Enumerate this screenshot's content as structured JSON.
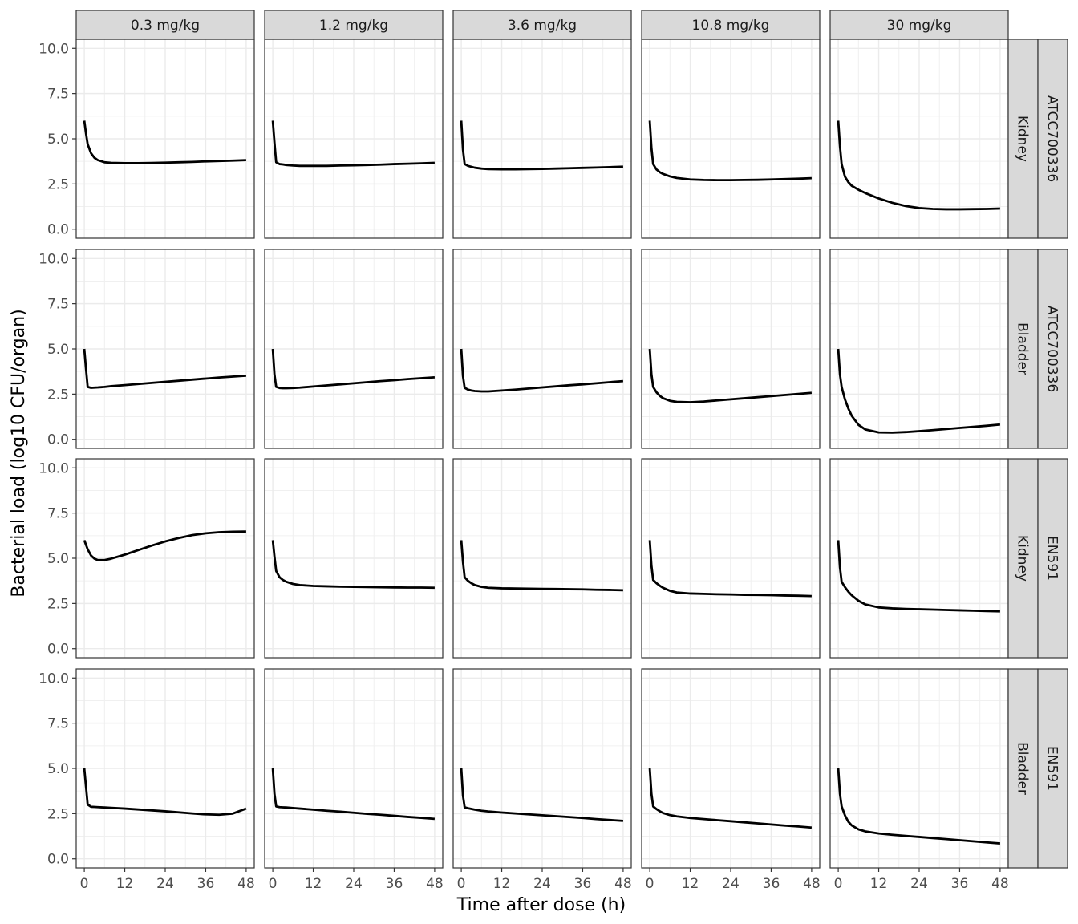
{
  "chart_data": {
    "type": "line",
    "layout": "facet-grid",
    "xlabel": "Time after dose (h)",
    "ylabel": "Bacterial load (log10 CFU/organ)",
    "xlim": [
      0,
      48
    ],
    "ylim": [
      0,
      10
    ],
    "x_ticks": [
      0,
      12,
      24,
      36,
      48
    ],
    "x_tick_labels": [
      "0",
      "12",
      "24",
      "36",
      "48"
    ],
    "y_ticks": [
      0,
      2.5,
      5,
      7.5,
      10
    ],
    "y_tick_labels": [
      "0.0",
      "2.5",
      "5.0",
      "7.5",
      "10.0"
    ],
    "grid": true,
    "line_color": "#000000",
    "column_labels": [
      "0.3 mg/kg",
      "1.2 mg/kg",
      "3.6 mg/kg",
      "10.8 mg/kg",
      "30 mg/kg"
    ],
    "row_labels": [
      {
        "organ": "Kidney",
        "strain": "ATCC700336"
      },
      {
        "organ": "Bladder",
        "strain": "ATCC700336"
      },
      {
        "organ": "Kidney",
        "strain": "EN591"
      },
      {
        "organ": "Bladder",
        "strain": "EN591"
      }
    ],
    "x": [
      0,
      0.5,
      1,
      2,
      3,
      4,
      6,
      8,
      12,
      16,
      20,
      24,
      28,
      32,
      36,
      40,
      44,
      48
    ],
    "panels": [
      [
        {
          "y": [
            6.0,
            5.3,
            4.7,
            4.2,
            3.95,
            3.82,
            3.7,
            3.67,
            3.65,
            3.65,
            3.66,
            3.68,
            3.7,
            3.72,
            3.75,
            3.77,
            3.79,
            3.82
          ]
        },
        {
          "y": [
            6.0,
            4.8,
            3.7,
            3.6,
            3.58,
            3.55,
            3.52,
            3.5,
            3.5,
            3.5,
            3.52,
            3.53,
            3.55,
            3.57,
            3.6,
            3.62,
            3.64,
            3.67
          ]
        },
        {
          "y": [
            6.0,
            4.4,
            3.6,
            3.5,
            3.45,
            3.4,
            3.35,
            3.32,
            3.31,
            3.31,
            3.32,
            3.33,
            3.35,
            3.37,
            3.39,
            3.41,
            3.43,
            3.46
          ]
        },
        {
          "y": [
            6.0,
            4.5,
            3.6,
            3.3,
            3.15,
            3.05,
            2.92,
            2.83,
            2.75,
            2.72,
            2.71,
            2.71,
            2.72,
            2.73,
            2.75,
            2.77,
            2.79,
            2.82
          ]
        },
        {
          "y": [
            6.0,
            4.6,
            3.6,
            2.9,
            2.6,
            2.4,
            2.18,
            2.0,
            1.7,
            1.46,
            1.28,
            1.17,
            1.12,
            1.1,
            1.1,
            1.11,
            1.12,
            1.14
          ]
        }
      ],
      [
        {
          "y": [
            5.0,
            3.9,
            2.9,
            2.85,
            2.86,
            2.87,
            2.9,
            2.94,
            3.0,
            3.06,
            3.12,
            3.18,
            3.24,
            3.3,
            3.36,
            3.42,
            3.47,
            3.52
          ]
        },
        {
          "y": [
            5.0,
            3.6,
            2.9,
            2.84,
            2.83,
            2.83,
            2.84,
            2.86,
            2.92,
            2.98,
            3.04,
            3.1,
            3.16,
            3.22,
            3.27,
            3.33,
            3.38,
            3.43
          ]
        },
        {
          "y": [
            5.0,
            3.5,
            2.85,
            2.75,
            2.7,
            2.67,
            2.65,
            2.65,
            2.7,
            2.75,
            2.81,
            2.87,
            2.93,
            2.99,
            3.04,
            3.1,
            3.16,
            3.22
          ]
        },
        {
          "y": [
            5.0,
            3.6,
            2.9,
            2.6,
            2.4,
            2.27,
            2.13,
            2.07,
            2.05,
            2.09,
            2.15,
            2.21,
            2.27,
            2.33,
            2.39,
            2.45,
            2.51,
            2.57
          ]
        },
        {
          "y": [
            5.0,
            3.6,
            2.9,
            2.2,
            1.7,
            1.3,
            0.8,
            0.55,
            0.38,
            0.37,
            0.4,
            0.45,
            0.51,
            0.57,
            0.63,
            0.69,
            0.75,
            0.82
          ]
        }
      ],
      [
        {
          "y": [
            6.0,
            5.75,
            5.5,
            5.15,
            4.98,
            4.9,
            4.9,
            4.98,
            5.2,
            5.45,
            5.7,
            5.93,
            6.12,
            6.28,
            6.38,
            6.44,
            6.47,
            6.48
          ]
        },
        {
          "y": [
            6.0,
            5.1,
            4.3,
            3.95,
            3.8,
            3.7,
            3.58,
            3.52,
            3.47,
            3.45,
            3.43,
            3.42,
            3.41,
            3.4,
            3.39,
            3.38,
            3.38,
            3.37
          ]
        },
        {
          "y": [
            6.0,
            4.8,
            3.95,
            3.75,
            3.62,
            3.52,
            3.42,
            3.37,
            3.34,
            3.33,
            3.32,
            3.31,
            3.3,
            3.29,
            3.28,
            3.26,
            3.25,
            3.23
          ]
        },
        {
          "y": [
            6.0,
            4.6,
            3.8,
            3.62,
            3.48,
            3.36,
            3.2,
            3.11,
            3.05,
            3.03,
            3.01,
            3.0,
            2.98,
            2.97,
            2.96,
            2.94,
            2.93,
            2.91
          ]
        },
        {
          "y": [
            6.0,
            4.5,
            3.7,
            3.4,
            3.15,
            2.95,
            2.65,
            2.45,
            2.28,
            2.23,
            2.2,
            2.18,
            2.16,
            2.14,
            2.12,
            2.1,
            2.08,
            2.06
          ]
        }
      ],
      [
        {
          "y": [
            5.0,
            4.0,
            3.0,
            2.88,
            2.87,
            2.86,
            2.84,
            2.82,
            2.78,
            2.73,
            2.68,
            2.63,
            2.57,
            2.51,
            2.46,
            2.44,
            2.5,
            2.78
          ]
        },
        {
          "y": [
            5.0,
            3.6,
            2.9,
            2.86,
            2.85,
            2.84,
            2.81,
            2.78,
            2.72,
            2.66,
            2.61,
            2.55,
            2.49,
            2.44,
            2.38,
            2.32,
            2.27,
            2.21
          ]
        },
        {
          "y": [
            5.0,
            3.5,
            2.85,
            2.8,
            2.76,
            2.72,
            2.66,
            2.62,
            2.56,
            2.51,
            2.46,
            2.41,
            2.36,
            2.31,
            2.26,
            2.2,
            2.15,
            2.1
          ]
        },
        {
          "y": [
            5.0,
            3.6,
            2.9,
            2.75,
            2.63,
            2.53,
            2.42,
            2.35,
            2.26,
            2.2,
            2.14,
            2.08,
            2.02,
            1.96,
            1.9,
            1.84,
            1.79,
            1.73
          ]
        },
        {
          "y": [
            5.0,
            3.6,
            2.9,
            2.4,
            2.05,
            1.85,
            1.63,
            1.52,
            1.4,
            1.33,
            1.27,
            1.21,
            1.15,
            1.09,
            1.03,
            0.97,
            0.91,
            0.85
          ]
        }
      ]
    ]
  }
}
